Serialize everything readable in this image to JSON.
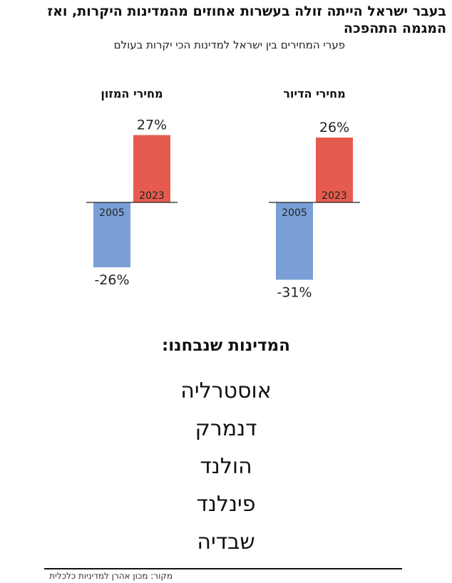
{
  "header": {
    "title": "בעבר ישראל הייתה זולה בעשרות אחוזים מהמדינות היקרות, ואז המגמה התהפכה",
    "subtitle": "פערי המחירים בין ישראל למדינות הכי יקרות בעולם"
  },
  "chart_data": [
    {
      "type": "bar",
      "title": "מחירי הדיור",
      "categories": [
        "2005",
        "2023"
      ],
      "values": [
        -31,
        26
      ],
      "value_labels": [
        "-31%",
        "26%"
      ],
      "colors": [
        "#7a9fd6",
        "#e65b4f"
      ]
    },
    {
      "type": "bar",
      "title": "מחירי המזון",
      "categories": [
        "2005",
        "2023"
      ],
      "values": [
        -26,
        27
      ],
      "value_labels": [
        "-26%",
        "27%"
      ],
      "colors": [
        "#7a9fd6",
        "#e65b4f"
      ]
    }
  ],
  "countries": {
    "heading": "המדינות שנבחנו:",
    "items": [
      "אוסטרליה",
      "דנמרק",
      "הולנד",
      "פינלנד",
      "שבדיה"
    ]
  },
  "footer": {
    "source": "מקור: מכון אהרן למדיניות כלכלית"
  }
}
